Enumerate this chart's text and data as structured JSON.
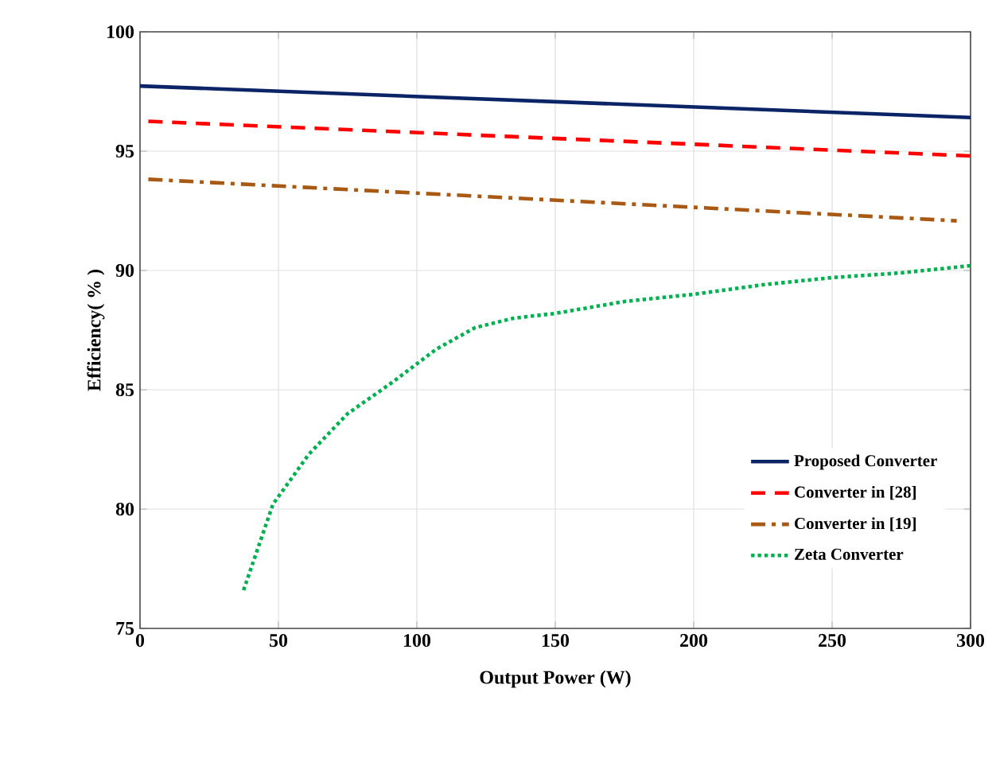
{
  "chart_data": {
    "type": "line",
    "xlabel": "Output Power (W)",
    "ylabel": "Efficiency( % )",
    "xlim": [
      0,
      300
    ],
    "ylim": [
      75,
      100
    ],
    "xticks": [
      0,
      50,
      100,
      150,
      200,
      250,
      300
    ],
    "yticks": [
      75,
      80,
      85,
      90,
      95,
      100
    ],
    "grid": true,
    "legend": "bottom right",
    "marker": "none",
    "series": [
      {
        "name": "Proposed Converter",
        "color": "#0b2466",
        "line_style": "solid",
        "x": [
          0,
          300
        ],
        "values": [
          97.73,
          96.41
        ]
      },
      {
        "name": "Converter in [28]",
        "color": "#ff0000",
        "line_style": "dashed",
        "x": [
          3,
          300
        ],
        "values": [
          96.25,
          94.8
        ]
      },
      {
        "name": "Converter in [19]",
        "color": "#a85a14",
        "line_style": "dashdot",
        "x": [
          3,
          295
        ],
        "values": [
          93.82,
          92.08
        ]
      },
      {
        "name": "Zeta Converter",
        "color": "#00b050",
        "line_style": "dotted",
        "x": [
          37.4,
          48,
          61,
          75,
          91,
          107,
          121,
          135,
          150,
          175,
          200,
          225,
          250,
          275,
          300
        ],
        "values": [
          76.6,
          80.2,
          82.3,
          84.0,
          85.3,
          86.7,
          87.6,
          88.0,
          88.2,
          88.7,
          89.0,
          89.4,
          89.7,
          89.9,
          90.2
        ]
      }
    ]
  }
}
